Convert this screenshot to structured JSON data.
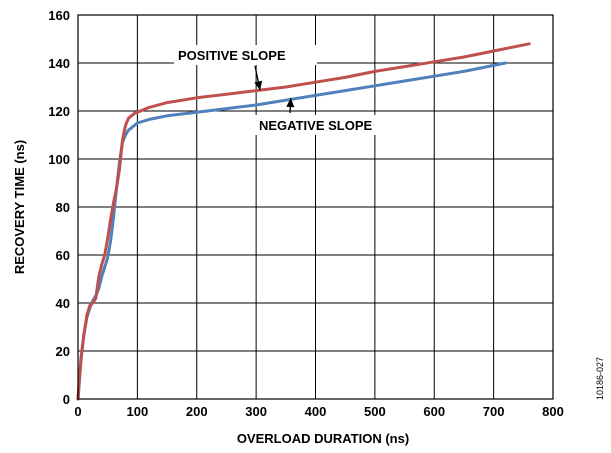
{
  "chart_data": {
    "type": "line",
    "xlabel": "OVERLOAD DURATION (ns)",
    "ylabel": "RECOVERY TIME (ns)",
    "xlim": [
      0,
      800
    ],
    "ylim": [
      0,
      160
    ],
    "xticks": [
      0,
      100,
      200,
      300,
      400,
      500,
      600,
      700,
      800
    ],
    "yticks": [
      0,
      20,
      40,
      60,
      80,
      100,
      120,
      140,
      160
    ],
    "grid": true,
    "legend": "none",
    "series": [
      {
        "name": "POSITIVE SLOPE",
        "color": "#c0504d",
        "x": [
          0,
          5,
          10,
          15,
          20,
          25,
          30,
          35,
          40,
          45,
          50,
          55,
          60,
          65,
          70,
          75,
          80,
          85,
          90,
          95,
          100,
          120,
          150,
          200,
          250,
          300,
          350,
          400,
          450,
          500,
          550,
          600,
          650,
          700,
          760
        ],
        "y": [
          0,
          17,
          27,
          35,
          39,
          40,
          42,
          51,
          56,
          60,
          67,
          75,
          82,
          88,
          96,
          108,
          114,
          117,
          118,
          119,
          119.5,
          121.5,
          123.5,
          125.5,
          127,
          128.5,
          130,
          132,
          134,
          136.5,
          138.5,
          140.5,
          142.5,
          145,
          148
        ]
      },
      {
        "name": "NEGATIVE SLOPE",
        "color": "#4f81bd",
        "x": [
          0,
          5,
          10,
          15,
          20,
          25,
          30,
          35,
          40,
          45,
          50,
          55,
          60,
          65,
          70,
          75,
          80,
          85,
          90,
          95,
          100,
          120,
          150,
          200,
          250,
          300,
          350,
          400,
          450,
          500,
          550,
          600,
          650,
          720
        ],
        "y": [
          0,
          16,
          27,
          34,
          38,
          41,
          43,
          46,
          51,
          55,
          59,
          66,
          76,
          88,
          99,
          107,
          110,
          112,
          113,
          114,
          115,
          116.5,
          118,
          119.5,
          121,
          122.5,
          124.5,
          126.5,
          128.5,
          130.5,
          132.5,
          134.5,
          136.5,
          140
        ]
      }
    ],
    "annotations": [
      {
        "text": "POSITIVE SLOPE",
        "target_series": 0,
        "x": 310,
        "y": 129
      },
      {
        "text": "NEGATIVE SLOPE",
        "target_series": 1,
        "x": 355,
        "y": 125
      }
    ],
    "figure_id": "10186-027"
  }
}
